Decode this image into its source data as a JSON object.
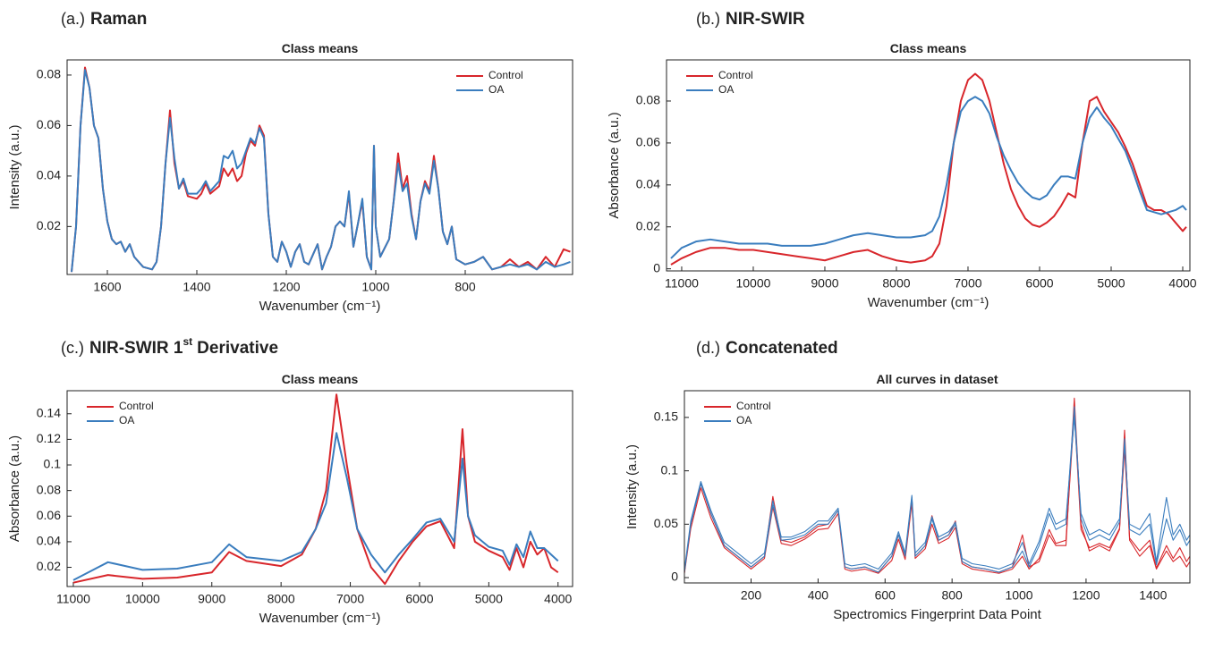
{
  "chart_data": [
    {
      "type": "line",
      "panel_label": "(a.)",
      "panel_title": [
        "Raman"
      ],
      "title": "Class means",
      "x_label": "Wavenumber (cm⁻¹)",
      "y_label": "Intensity (a.u.)",
      "legend": "upper right",
      "xlim": [
        1690,
        560
      ],
      "ylim": [
        0.001,
        0.086
      ],
      "xticks": [
        1600,
        1400,
        1200,
        1000,
        800
      ],
      "yticks": [
        0.02,
        0.04,
        0.06,
        0.08
      ],
      "x": [
        1680,
        1670,
        1660,
        1650,
        1640,
        1630,
        1620,
        1610,
        1600,
        1590,
        1580,
        1570,
        1560,
        1550,
        1540,
        1520,
        1500,
        1490,
        1480,
        1470,
        1460,
        1450,
        1440,
        1430,
        1420,
        1400,
        1390,
        1380,
        1370,
        1350,
        1340,
        1330,
        1320,
        1310,
        1300,
        1290,
        1280,
        1270,
        1260,
        1250,
        1240,
        1230,
        1220,
        1210,
        1200,
        1190,
        1180,
        1170,
        1160,
        1150,
        1130,
        1120,
        1110,
        1100,
        1090,
        1080,
        1070,
        1060,
        1050,
        1040,
        1030,
        1020,
        1010,
        1004,
        1000,
        990,
        970,
        960,
        950,
        940,
        930,
        920,
        910,
        900,
        890,
        880,
        870,
        860,
        850,
        840,
        830,
        820,
        800,
        780,
        760,
        740,
        720,
        700,
        680,
        660,
        640,
        620,
        600,
        580,
        565
      ],
      "series": [
        {
          "name": "Control",
          "color": "#d8262b",
          "values": [
            0.002,
            0.02,
            0.06,
            0.083,
            0.075,
            0.06,
            0.055,
            0.035,
            0.022,
            0.015,
            0.013,
            0.014,
            0.01,
            0.013,
            0.008,
            0.004,
            0.003,
            0.006,
            0.02,
            0.045,
            0.066,
            0.045,
            0.035,
            0.038,
            0.032,
            0.031,
            0.033,
            0.037,
            0.033,
            0.036,
            0.043,
            0.04,
            0.043,
            0.038,
            0.04,
            0.049,
            0.054,
            0.052,
            0.06,
            0.056,
            0.025,
            0.008,
            0.006,
            0.014,
            0.01,
            0.004,
            0.01,
            0.013,
            0.006,
            0.005,
            0.013,
            0.003,
            0.008,
            0.012,
            0.02,
            0.022,
            0.02,
            0.033,
            0.012,
            0.021,
            0.03,
            0.008,
            0.003,
            0.052,
            0.02,
            0.008,
            0.015,
            0.03,
            0.049,
            0.035,
            0.04,
            0.025,
            0.015,
            0.03,
            0.038,
            0.034,
            0.048,
            0.035,
            0.018,
            0.013,
            0.02,
            0.007,
            0.005,
            0.006,
            0.008,
            0.003,
            0.004,
            0.007,
            0.004,
            0.006,
            0.003,
            0.008,
            0.004,
            0.011,
            0.01
          ]
        },
        {
          "name": "OA",
          "color": "#3a7dbe",
          "values": [
            0.002,
            0.02,
            0.06,
            0.082,
            0.075,
            0.06,
            0.055,
            0.035,
            0.022,
            0.015,
            0.013,
            0.014,
            0.01,
            0.013,
            0.008,
            0.004,
            0.003,
            0.006,
            0.02,
            0.045,
            0.063,
            0.047,
            0.035,
            0.039,
            0.033,
            0.033,
            0.035,
            0.038,
            0.034,
            0.038,
            0.048,
            0.047,
            0.05,
            0.043,
            0.045,
            0.05,
            0.055,
            0.053,
            0.059,
            0.055,
            0.025,
            0.008,
            0.006,
            0.014,
            0.01,
            0.004,
            0.01,
            0.013,
            0.006,
            0.005,
            0.013,
            0.003,
            0.008,
            0.012,
            0.02,
            0.022,
            0.02,
            0.034,
            0.012,
            0.021,
            0.031,
            0.008,
            0.003,
            0.052,
            0.02,
            0.008,
            0.015,
            0.03,
            0.045,
            0.034,
            0.037,
            0.024,
            0.015,
            0.03,
            0.037,
            0.033,
            0.046,
            0.035,
            0.018,
            0.013,
            0.02,
            0.007,
            0.005,
            0.006,
            0.008,
            0.003,
            0.004,
            0.005,
            0.004,
            0.005,
            0.003,
            0.006,
            0.004,
            0.005,
            0.006
          ]
        }
      ]
    },
    {
      "type": "line",
      "panel_label": "(b.)",
      "panel_title": [
        "NIR-SWIR"
      ],
      "title": "Class means",
      "x_label": "Wavenumber (cm⁻¹)",
      "y_label": "Absorbance (a.u.)",
      "legend": "upper left",
      "xlim": [
        11212,
        3900
      ],
      "ylim": [
        -0.001,
        0.0996
      ],
      "xticks": [
        11000,
        10000,
        9000,
        8000,
        7000,
        6000,
        5000,
        4000
      ],
      "yticks": [
        0,
        0.02,
        0.04,
        0.06,
        0.08
      ],
      "x": [
        11150,
        11000,
        10800,
        10600,
        10400,
        10200,
        10000,
        9800,
        9600,
        9400,
        9200,
        9000,
        8800,
        8600,
        8400,
        8200,
        8000,
        7800,
        7600,
        7500,
        7400,
        7300,
        7200,
        7100,
        7000,
        6900,
        6800,
        6700,
        6600,
        6500,
        6400,
        6300,
        6200,
        6100,
        6000,
        5900,
        5800,
        5700,
        5600,
        5500,
        5400,
        5300,
        5200,
        5100,
        5000,
        4900,
        4800,
        4700,
        4600,
        4500,
        4400,
        4300,
        4200,
        4100,
        4000,
        3950
      ],
      "series": [
        {
          "name": "Control",
          "color": "#d8262b",
          "values": [
            0.002,
            0.005,
            0.008,
            0.01,
            0.01,
            0.009,
            0.009,
            0.008,
            0.007,
            0.006,
            0.005,
            0.004,
            0.006,
            0.008,
            0.009,
            0.006,
            0.004,
            0.003,
            0.004,
            0.006,
            0.012,
            0.03,
            0.06,
            0.08,
            0.09,
            0.093,
            0.09,
            0.08,
            0.065,
            0.05,
            0.038,
            0.03,
            0.024,
            0.021,
            0.02,
            0.022,
            0.025,
            0.03,
            0.036,
            0.034,
            0.06,
            0.08,
            0.082,
            0.075,
            0.07,
            0.065,
            0.058,
            0.05,
            0.04,
            0.03,
            0.028,
            0.028,
            0.026,
            0.022,
            0.018,
            0.02
          ]
        },
        {
          "name": "OA",
          "color": "#3a7dbe",
          "values": [
            0.005,
            0.01,
            0.013,
            0.014,
            0.013,
            0.012,
            0.012,
            0.012,
            0.011,
            0.011,
            0.011,
            0.012,
            0.014,
            0.016,
            0.017,
            0.016,
            0.015,
            0.015,
            0.016,
            0.018,
            0.025,
            0.04,
            0.06,
            0.075,
            0.08,
            0.082,
            0.08,
            0.074,
            0.063,
            0.054,
            0.047,
            0.041,
            0.037,
            0.034,
            0.033,
            0.035,
            0.04,
            0.044,
            0.044,
            0.043,
            0.06,
            0.072,
            0.077,
            0.072,
            0.068,
            0.062,
            0.056,
            0.047,
            0.037,
            0.028,
            0.027,
            0.026,
            0.027,
            0.028,
            0.03,
            0.028
          ]
        }
      ]
    },
    {
      "type": "line",
      "panel_label": "(c.)",
      "panel_title": [
        "NIR-SWIR 1",
        "st",
        "Derivative"
      ],
      "title": "Class means",
      "x_label": "Wavenumber (cm⁻¹)",
      "y_label": "Absorbance (a.u.)",
      "legend": "upper left",
      "xlim": [
        11090,
        3790
      ],
      "ylim": [
        0.005,
        0.158
      ],
      "xticks": [
        11000,
        10000,
        9000,
        8000,
        7000,
        6000,
        5000,
        4000
      ],
      "yticks": [
        0.02,
        0.04,
        0.06,
        0.08,
        0.1,
        0.12,
        0.14
      ],
      "x": [
        11000,
        10500,
        10000,
        9500,
        9000,
        8750,
        8500,
        8000,
        7700,
        7500,
        7350,
        7200,
        7050,
        6900,
        6700,
        6500,
        6300,
        6100,
        5900,
        5700,
        5500,
        5380,
        5300,
        5200,
        5000,
        4800,
        4700,
        4600,
        4500,
        4400,
        4300,
        4200,
        4100,
        4000
      ],
      "series": [
        {
          "name": "Control",
          "color": "#d8262b",
          "values": [
            0.008,
            0.014,
            0.011,
            0.012,
            0.016,
            0.032,
            0.025,
            0.021,
            0.03,
            0.05,
            0.08,
            0.155,
            0.1,
            0.05,
            0.02,
            0.007,
            0.025,
            0.04,
            0.052,
            0.056,
            0.035,
            0.128,
            0.06,
            0.04,
            0.033,
            0.028,
            0.018,
            0.035,
            0.02,
            0.04,
            0.03,
            0.035,
            0.02,
            0.016
          ]
        },
        {
          "name": "OA",
          "color": "#3a7dbe",
          "values": [
            0.01,
            0.024,
            0.018,
            0.019,
            0.024,
            0.038,
            0.028,
            0.025,
            0.032,
            0.05,
            0.07,
            0.125,
            0.09,
            0.05,
            0.03,
            0.016,
            0.03,
            0.042,
            0.055,
            0.058,
            0.04,
            0.105,
            0.06,
            0.045,
            0.036,
            0.033,
            0.022,
            0.038,
            0.028,
            0.048,
            0.035,
            0.035,
            0.03,
            0.025
          ]
        }
      ]
    },
    {
      "type": "line",
      "panel_label": "(d.)",
      "panel_title": [
        "Concatenated"
      ],
      "title": "All curves in dataset",
      "x_label": "Spectromics Fingerprint Data Point",
      "y_label": "Intensity (a.u.)",
      "legend": "upper left",
      "xlim": [
        1,
        1510
      ],
      "ylim": [
        -0.005,
        0.175
      ],
      "xticks": [
        200,
        400,
        600,
        800,
        1000,
        1200,
        1400
      ],
      "yticks": [
        0,
        0.05,
        0.1,
        0.15
      ],
      "x": [
        1,
        20,
        50,
        80,
        120,
        160,
        200,
        240,
        265,
        290,
        320,
        360,
        400,
        430,
        460,
        480,
        500,
        540,
        580,
        620,
        640,
        660,
        680,
        690,
        720,
        740,
        760,
        790,
        810,
        830,
        860,
        900,
        940,
        980,
        1010,
        1030,
        1060,
        1090,
        1110,
        1140,
        1165,
        1185,
        1210,
        1240,
        1270,
        1300,
        1315,
        1330,
        1360,
        1390,
        1410,
        1440,
        1460,
        1480,
        1500,
        1510
      ],
      "series": [
        {
          "name": "Control",
          "color": "#d8262b",
          "values": [
            [
              0.005,
              0.05,
              0.088,
              0.06,
              0.03,
              0.02,
              0.01,
              0.02,
              0.076,
              0.035,
              0.033,
              0.038,
              0.048,
              0.05,
              0.063,
              0.01,
              0.008,
              0.01,
              0.005,
              0.02,
              0.04,
              0.02,
              0.075,
              0.02,
              0.03,
              0.058,
              0.035,
              0.04,
              0.053,
              0.015,
              0.01,
              0.008,
              0.005,
              0.01,
              0.04,
              0.01,
              0.015,
              0.04,
              0.03,
              0.03,
              0.168,
              0.05,
              0.025,
              0.03,
              0.025,
              0.045,
              0.138,
              0.035,
              0.02,
              0.03,
              0.008,
              0.025,
              0.015,
              0.02,
              0.01,
              0.015
            ],
            [
              0.004,
              0.046,
              0.084,
              0.056,
              0.028,
              0.018,
              0.008,
              0.018,
              0.066,
              0.032,
              0.03,
              0.036,
              0.045,
              0.046,
              0.06,
              0.008,
              0.006,
              0.008,
              0.004,
              0.016,
              0.036,
              0.017,
              0.07,
              0.018,
              0.027,
              0.05,
              0.032,
              0.037,
              0.047,
              0.013,
              0.008,
              0.006,
              0.004,
              0.008,
              0.02,
              0.008,
              0.018,
              0.045,
              0.032,
              0.035,
              0.155,
              0.045,
              0.028,
              0.032,
              0.028,
              0.046,
              0.12,
              0.037,
              0.025,
              0.035,
              0.009,
              0.03,
              0.018,
              0.028,
              0.015,
              0.02
            ]
          ]
        },
        {
          "name": "OA",
          "color": "#3a7dbe",
          "values": [
            [
              0.005,
              0.05,
              0.088,
              0.06,
              0.03,
              0.02,
              0.01,
              0.02,
              0.068,
              0.035,
              0.036,
              0.04,
              0.05,
              0.05,
              0.063,
              0.01,
              0.008,
              0.01,
              0.005,
              0.02,
              0.04,
              0.02,
              0.075,
              0.02,
              0.03,
              0.055,
              0.035,
              0.04,
              0.05,
              0.015,
              0.01,
              0.008,
              0.005,
              0.01,
              0.025,
              0.01,
              0.03,
              0.06,
              0.045,
              0.05,
              0.16,
              0.055,
              0.035,
              0.04,
              0.035,
              0.052,
              0.13,
              0.045,
              0.04,
              0.05,
              0.012,
              0.055,
              0.035,
              0.045,
              0.03,
              0.035
            ],
            [
              0.007,
              0.053,
              0.09,
              0.063,
              0.033,
              0.023,
              0.013,
              0.023,
              0.072,
              0.038,
              0.038,
              0.043,
              0.053,
              0.053,
              0.065,
              0.013,
              0.011,
              0.013,
              0.008,
              0.023,
              0.043,
              0.023,
              0.077,
              0.023,
              0.033,
              0.057,
              0.038,
              0.043,
              0.052,
              0.018,
              0.013,
              0.011,
              0.008,
              0.013,
              0.033,
              0.013,
              0.034,
              0.065,
              0.05,
              0.055,
              0.15,
              0.06,
              0.04,
              0.045,
              0.04,
              0.055,
              0.125,
              0.05,
              0.045,
              0.06,
              0.015,
              0.075,
              0.04,
              0.05,
              0.035,
              0.04
            ]
          ]
        }
      ]
    }
  ]
}
